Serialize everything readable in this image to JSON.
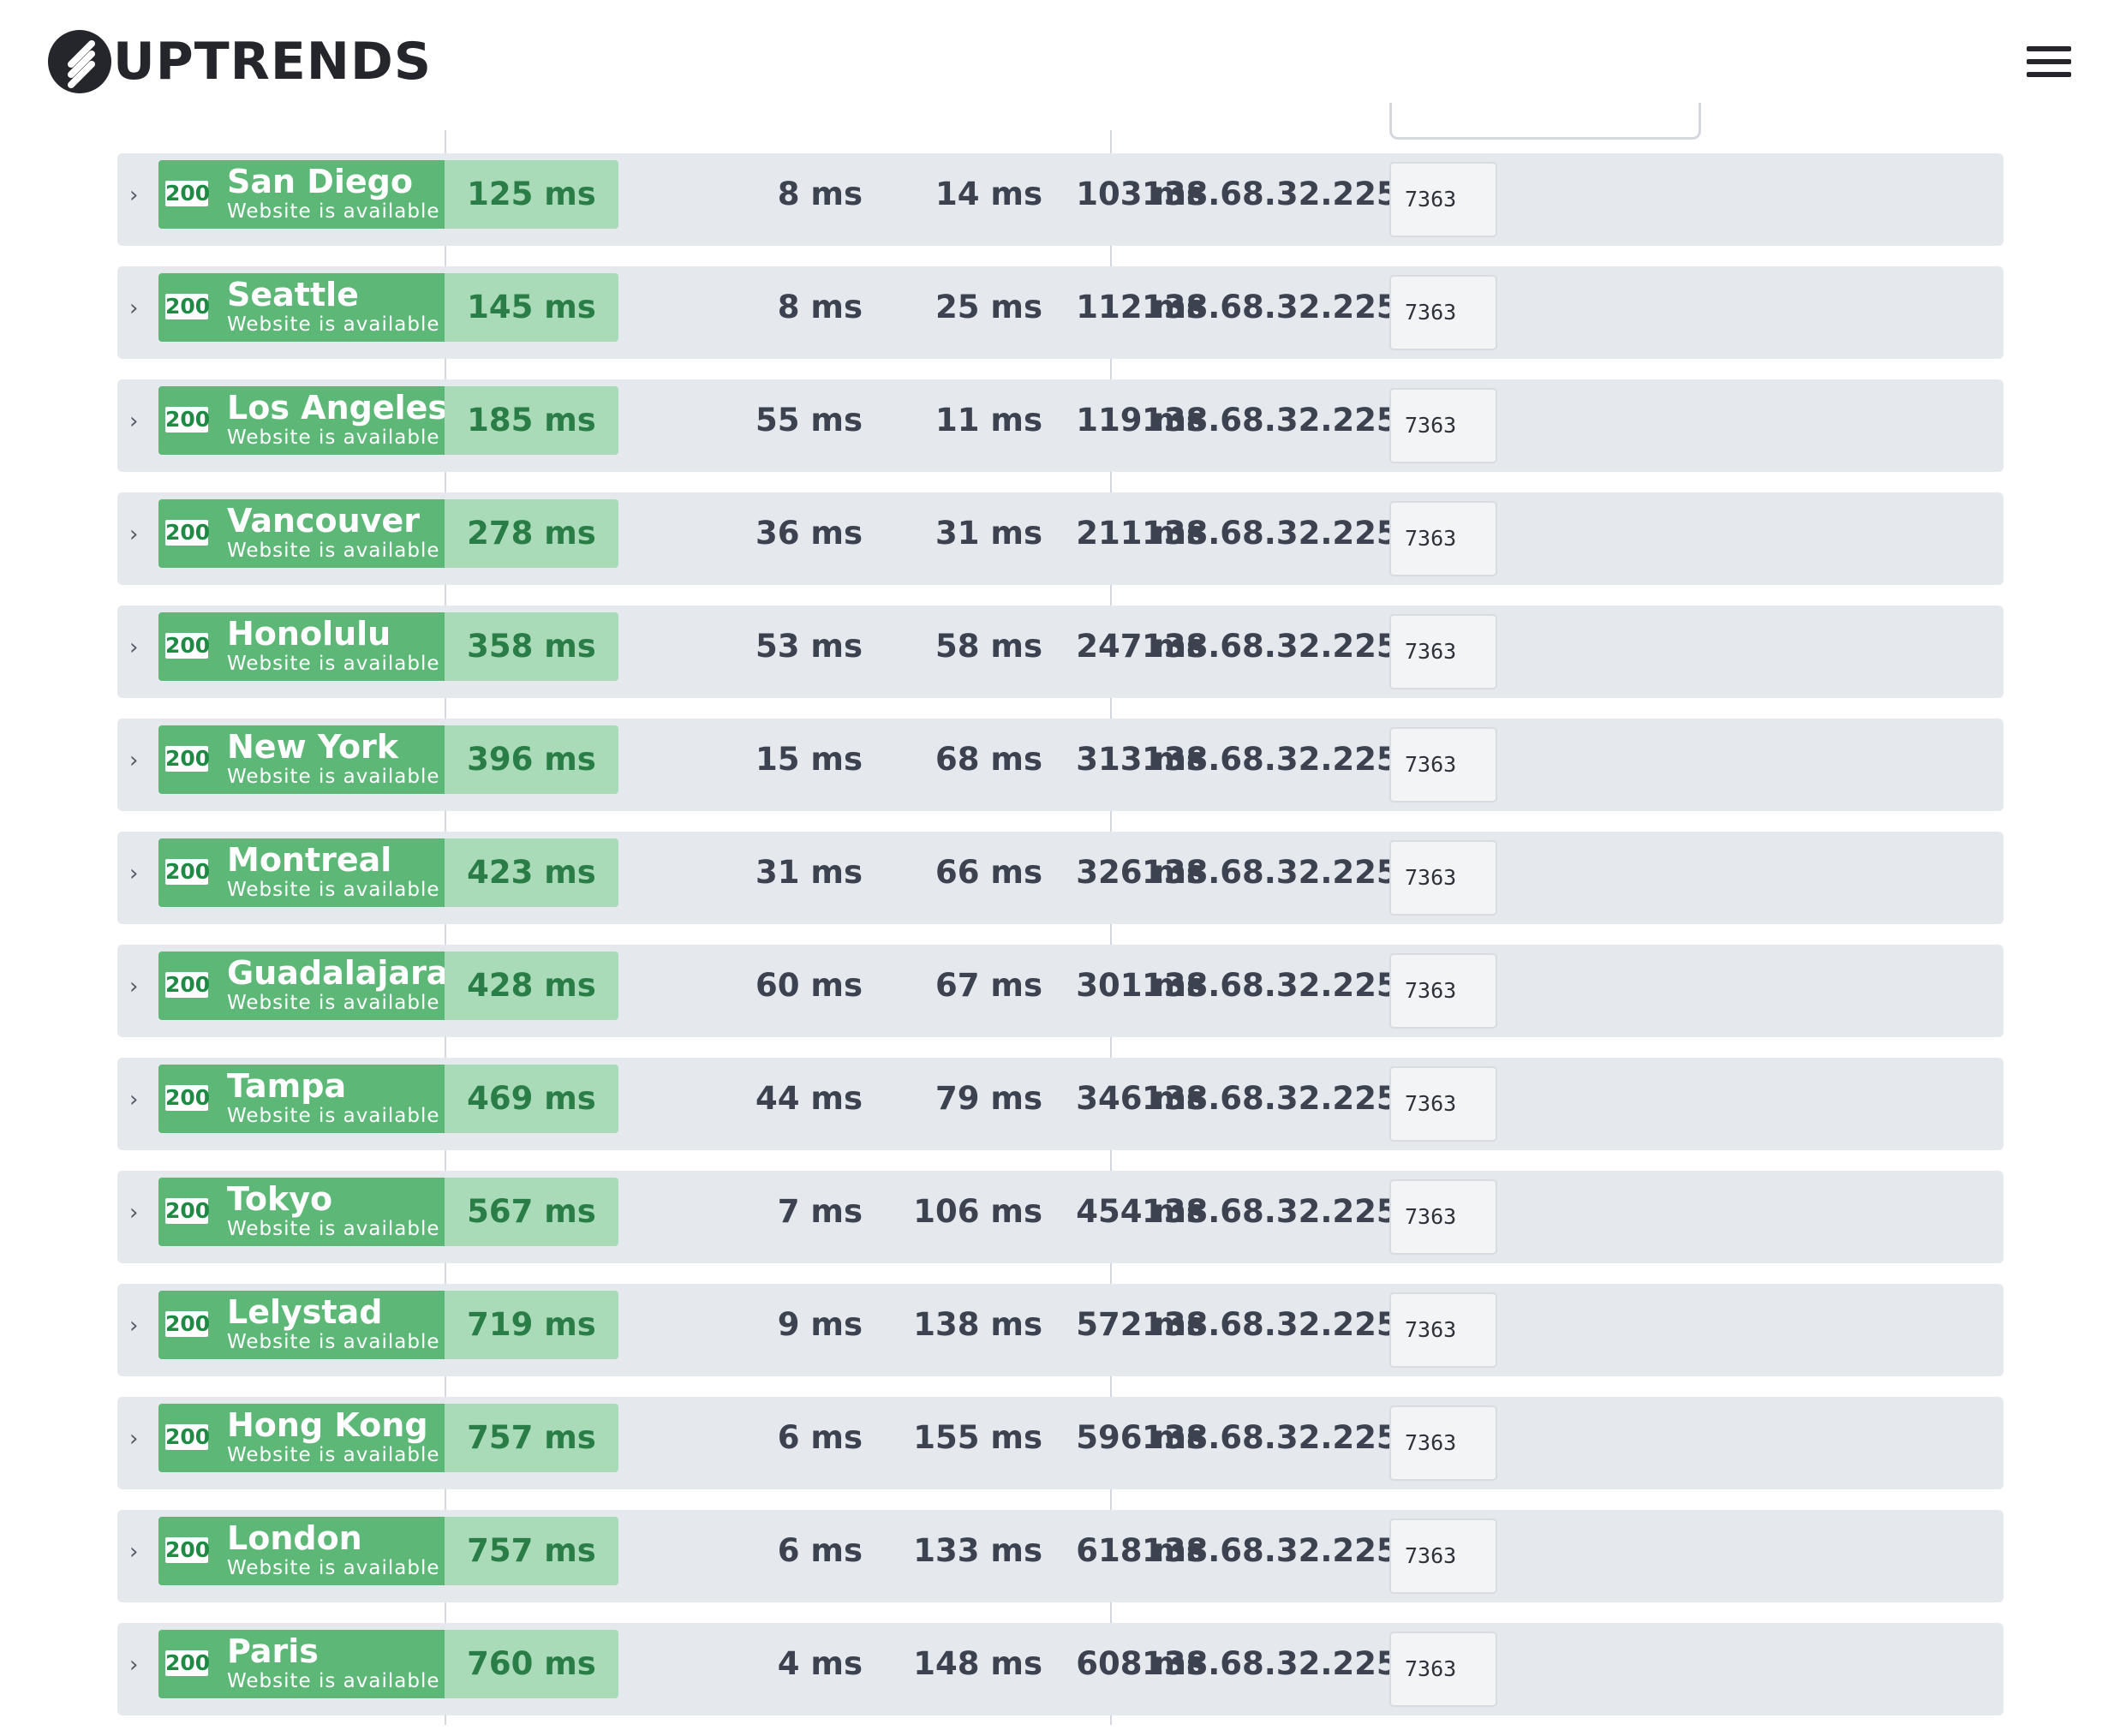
{
  "header": {
    "logo_text": "UPTRENDS",
    "menu_icon": "hamburger-icon"
  },
  "rows": [
    {
      "code": "200",
      "city": "San Diego",
      "status": "Website is available",
      "total": "125 ms",
      "dns": "8 ms",
      "connect": "14 ms",
      "download": "103 ms",
      "ip": "138.68.32.225",
      "size": "7363"
    },
    {
      "code": "200",
      "city": "Seattle",
      "status": "Website is available",
      "total": "145 ms",
      "dns": "8 ms",
      "connect": "25 ms",
      "download": "112 ms",
      "ip": "138.68.32.225",
      "size": "7363"
    },
    {
      "code": "200",
      "city": "Los Angeles",
      "status": "Website is available",
      "total": "185 ms",
      "dns": "55 ms",
      "connect": "11 ms",
      "download": "119 ms",
      "ip": "138.68.32.225",
      "size": "7363"
    },
    {
      "code": "200",
      "city": "Vancouver",
      "status": "Website is available",
      "total": "278 ms",
      "dns": "36 ms",
      "connect": "31 ms",
      "download": "211 ms",
      "ip": "138.68.32.225",
      "size": "7363"
    },
    {
      "code": "200",
      "city": "Honolulu",
      "status": "Website is available",
      "total": "358 ms",
      "dns": "53 ms",
      "connect": "58 ms",
      "download": "247 ms",
      "ip": "138.68.32.225",
      "size": "7363"
    },
    {
      "code": "200",
      "city": "New York",
      "status": "Website is available",
      "total": "396 ms",
      "dns": "15 ms",
      "connect": "68 ms",
      "download": "313 ms",
      "ip": "138.68.32.225",
      "size": "7363"
    },
    {
      "code": "200",
      "city": "Montreal",
      "status": "Website is available",
      "total": "423 ms",
      "dns": "31 ms",
      "connect": "66 ms",
      "download": "326 ms",
      "ip": "138.68.32.225",
      "size": "7363"
    },
    {
      "code": "200",
      "city": "Guadalajara",
      "status": "Website is available",
      "total": "428 ms",
      "dns": "60 ms",
      "connect": "67 ms",
      "download": "301 ms",
      "ip": "138.68.32.225",
      "size": "7363"
    },
    {
      "code": "200",
      "city": "Tampa",
      "status": "Website is available",
      "total": "469 ms",
      "dns": "44 ms",
      "connect": "79 ms",
      "download": "346 ms",
      "ip": "138.68.32.225",
      "size": "7363"
    },
    {
      "code": "200",
      "city": "Tokyo",
      "status": "Website is available",
      "total": "567 ms",
      "dns": "7 ms",
      "connect": "106 ms",
      "download": "454 ms",
      "ip": "138.68.32.225",
      "size": "7363"
    },
    {
      "code": "200",
      "city": "Lelystad",
      "status": "Website is available",
      "total": "719 ms",
      "dns": "9 ms",
      "connect": "138 ms",
      "download": "572 ms",
      "ip": "138.68.32.225",
      "size": "7363"
    },
    {
      "code": "200",
      "city": "Hong Kong",
      "status": "Website is available",
      "total": "757 ms",
      "dns": "6 ms",
      "connect": "155 ms",
      "download": "596 ms",
      "ip": "138.68.32.225",
      "size": "7363"
    },
    {
      "code": "200",
      "city": "London",
      "status": "Website is available",
      "total": "757 ms",
      "dns": "6 ms",
      "connect": "133 ms",
      "download": "618 ms",
      "ip": "138.68.32.225",
      "size": "7363"
    },
    {
      "code": "200",
      "city": "Paris",
      "status": "Website is available",
      "total": "760 ms",
      "dns": "4 ms",
      "connect": "148 ms",
      "download": "608 ms",
      "ip": "138.68.32.225",
      "size": "7363"
    }
  ]
}
